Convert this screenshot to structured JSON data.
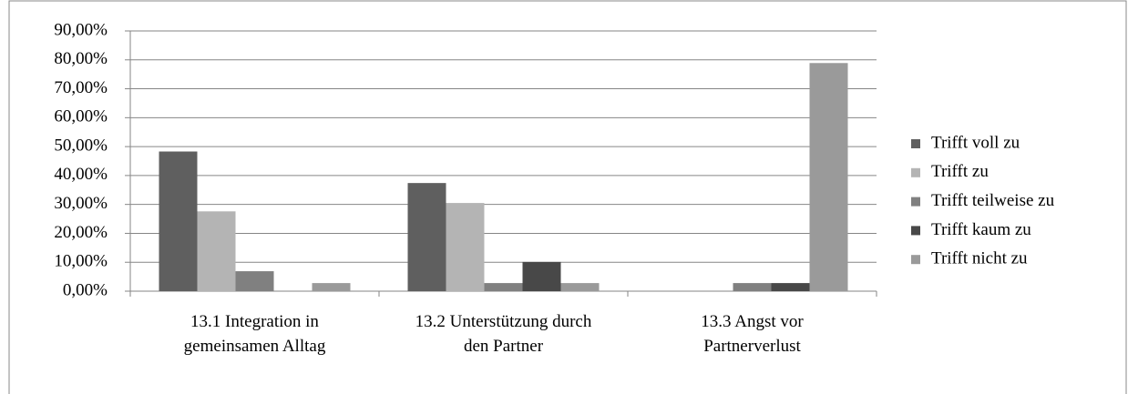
{
  "chart_data": {
    "type": "bar",
    "categories": [
      "13.1 Integration in gemeinsamen Alltag",
      "13.2 Unterstützung durch den Partner",
      "13.3 Angst vor Partnerverlust"
    ],
    "series": [
      {
        "name": "Trifft voll zu",
        "color": "#5f5f5f",
        "values": [
          48.3,
          37.4,
          0
        ]
      },
      {
        "name": "Trifft zu",
        "color": "#b4b4b4",
        "values": [
          27.6,
          30.5,
          0
        ]
      },
      {
        "name": "Trifft teilweise  zu",
        "color": "#808080",
        "values": [
          6.9,
          2.8,
          2.8
        ]
      },
      {
        "name": "Trifft kaum zu",
        "color": "#484848",
        "values": [
          0,
          10.1,
          2.8
        ]
      },
      {
        "name": "Trifft nicht zu",
        "color": "#9a9a9a",
        "values": [
          2.8,
          2.8,
          78.9
        ]
      }
    ],
    "ylim": [
      0,
      90
    ],
    "yticks": [
      {
        "value": 0,
        "label": "0,00%"
      },
      {
        "value": 10,
        "label": "10,00%"
      },
      {
        "value": 20,
        "label": "20,00%"
      },
      {
        "value": 30,
        "label": "30,00%"
      },
      {
        "value": 40,
        "label": "40,00%"
      },
      {
        "value": 50,
        "label": "50,00%"
      },
      {
        "value": 60,
        "label": "60,00%"
      },
      {
        "value": 70,
        "label": "70,00%"
      },
      {
        "value": 80,
        "label": "80,00%"
      },
      {
        "value": 90,
        "label": "90,00%"
      }
    ],
    "grid": true,
    "legend": "right"
  }
}
